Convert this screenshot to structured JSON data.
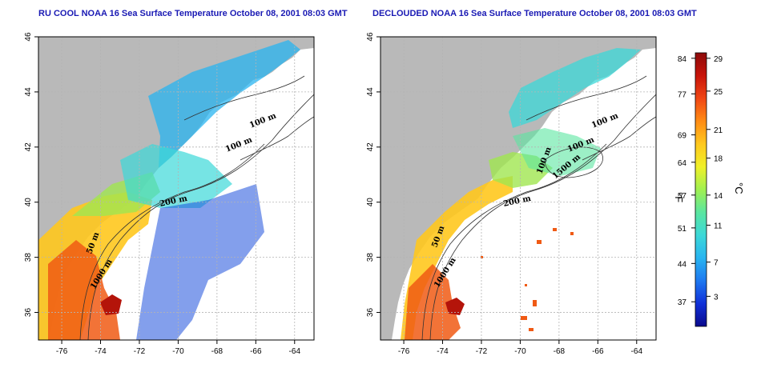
{
  "maps": [
    {
      "title": "RU COOL NOAA 16 Sea Surface Temperature October 08, 2001 08:03 GMT",
      "contour_labels": [
        "100 m",
        "100 m",
        "200 m",
        "50 m",
        "1000 m"
      ]
    },
    {
      "title": "DECLOUDED NOAA 16 Sea Surface Temperature October 08, 2001 08:03 GMT",
      "contour_labels": [
        "100 m",
        "100 m",
        "100 m",
        "200 m",
        "50 m",
        "1000 m",
        "1500 m"
      ]
    }
  ],
  "axes": {
    "x_ticks": [
      "-76",
      "-74",
      "-72",
      "-70",
      "-68",
      "-66",
      "-64"
    ],
    "y_ticks": [
      "36",
      "38",
      "40",
      "42",
      "44",
      "46"
    ],
    "xlim": [
      -77.2,
      -63.0
    ],
    "ylim": [
      35.0,
      46.0
    ]
  },
  "colorbar": {
    "fahrenheit_ticks": [
      "84",
      "77",
      "69",
      "64",
      "57",
      "51",
      "44",
      "37"
    ],
    "celsius_ticks": [
      "29",
      "25",
      "21",
      "18",
      "14",
      "11",
      "7",
      "3"
    ],
    "fahrenheit_unit": "°F",
    "celsius_unit": "°C",
    "colors": [
      "#0a0a8c",
      "#1030d8",
      "#1e78f0",
      "#28b4f0",
      "#3cd8d8",
      "#5ae6a0",
      "#a0f050",
      "#f0f028",
      "#ffc81e",
      "#ff8c14",
      "#f04614",
      "#c8140a",
      "#8c0a0a"
    ]
  },
  "colors": {
    "land": "#b9b9b9",
    "ocean": "#ffffff",
    "grid": "#b4b4b4",
    "title": "#1a1ab4"
  }
}
